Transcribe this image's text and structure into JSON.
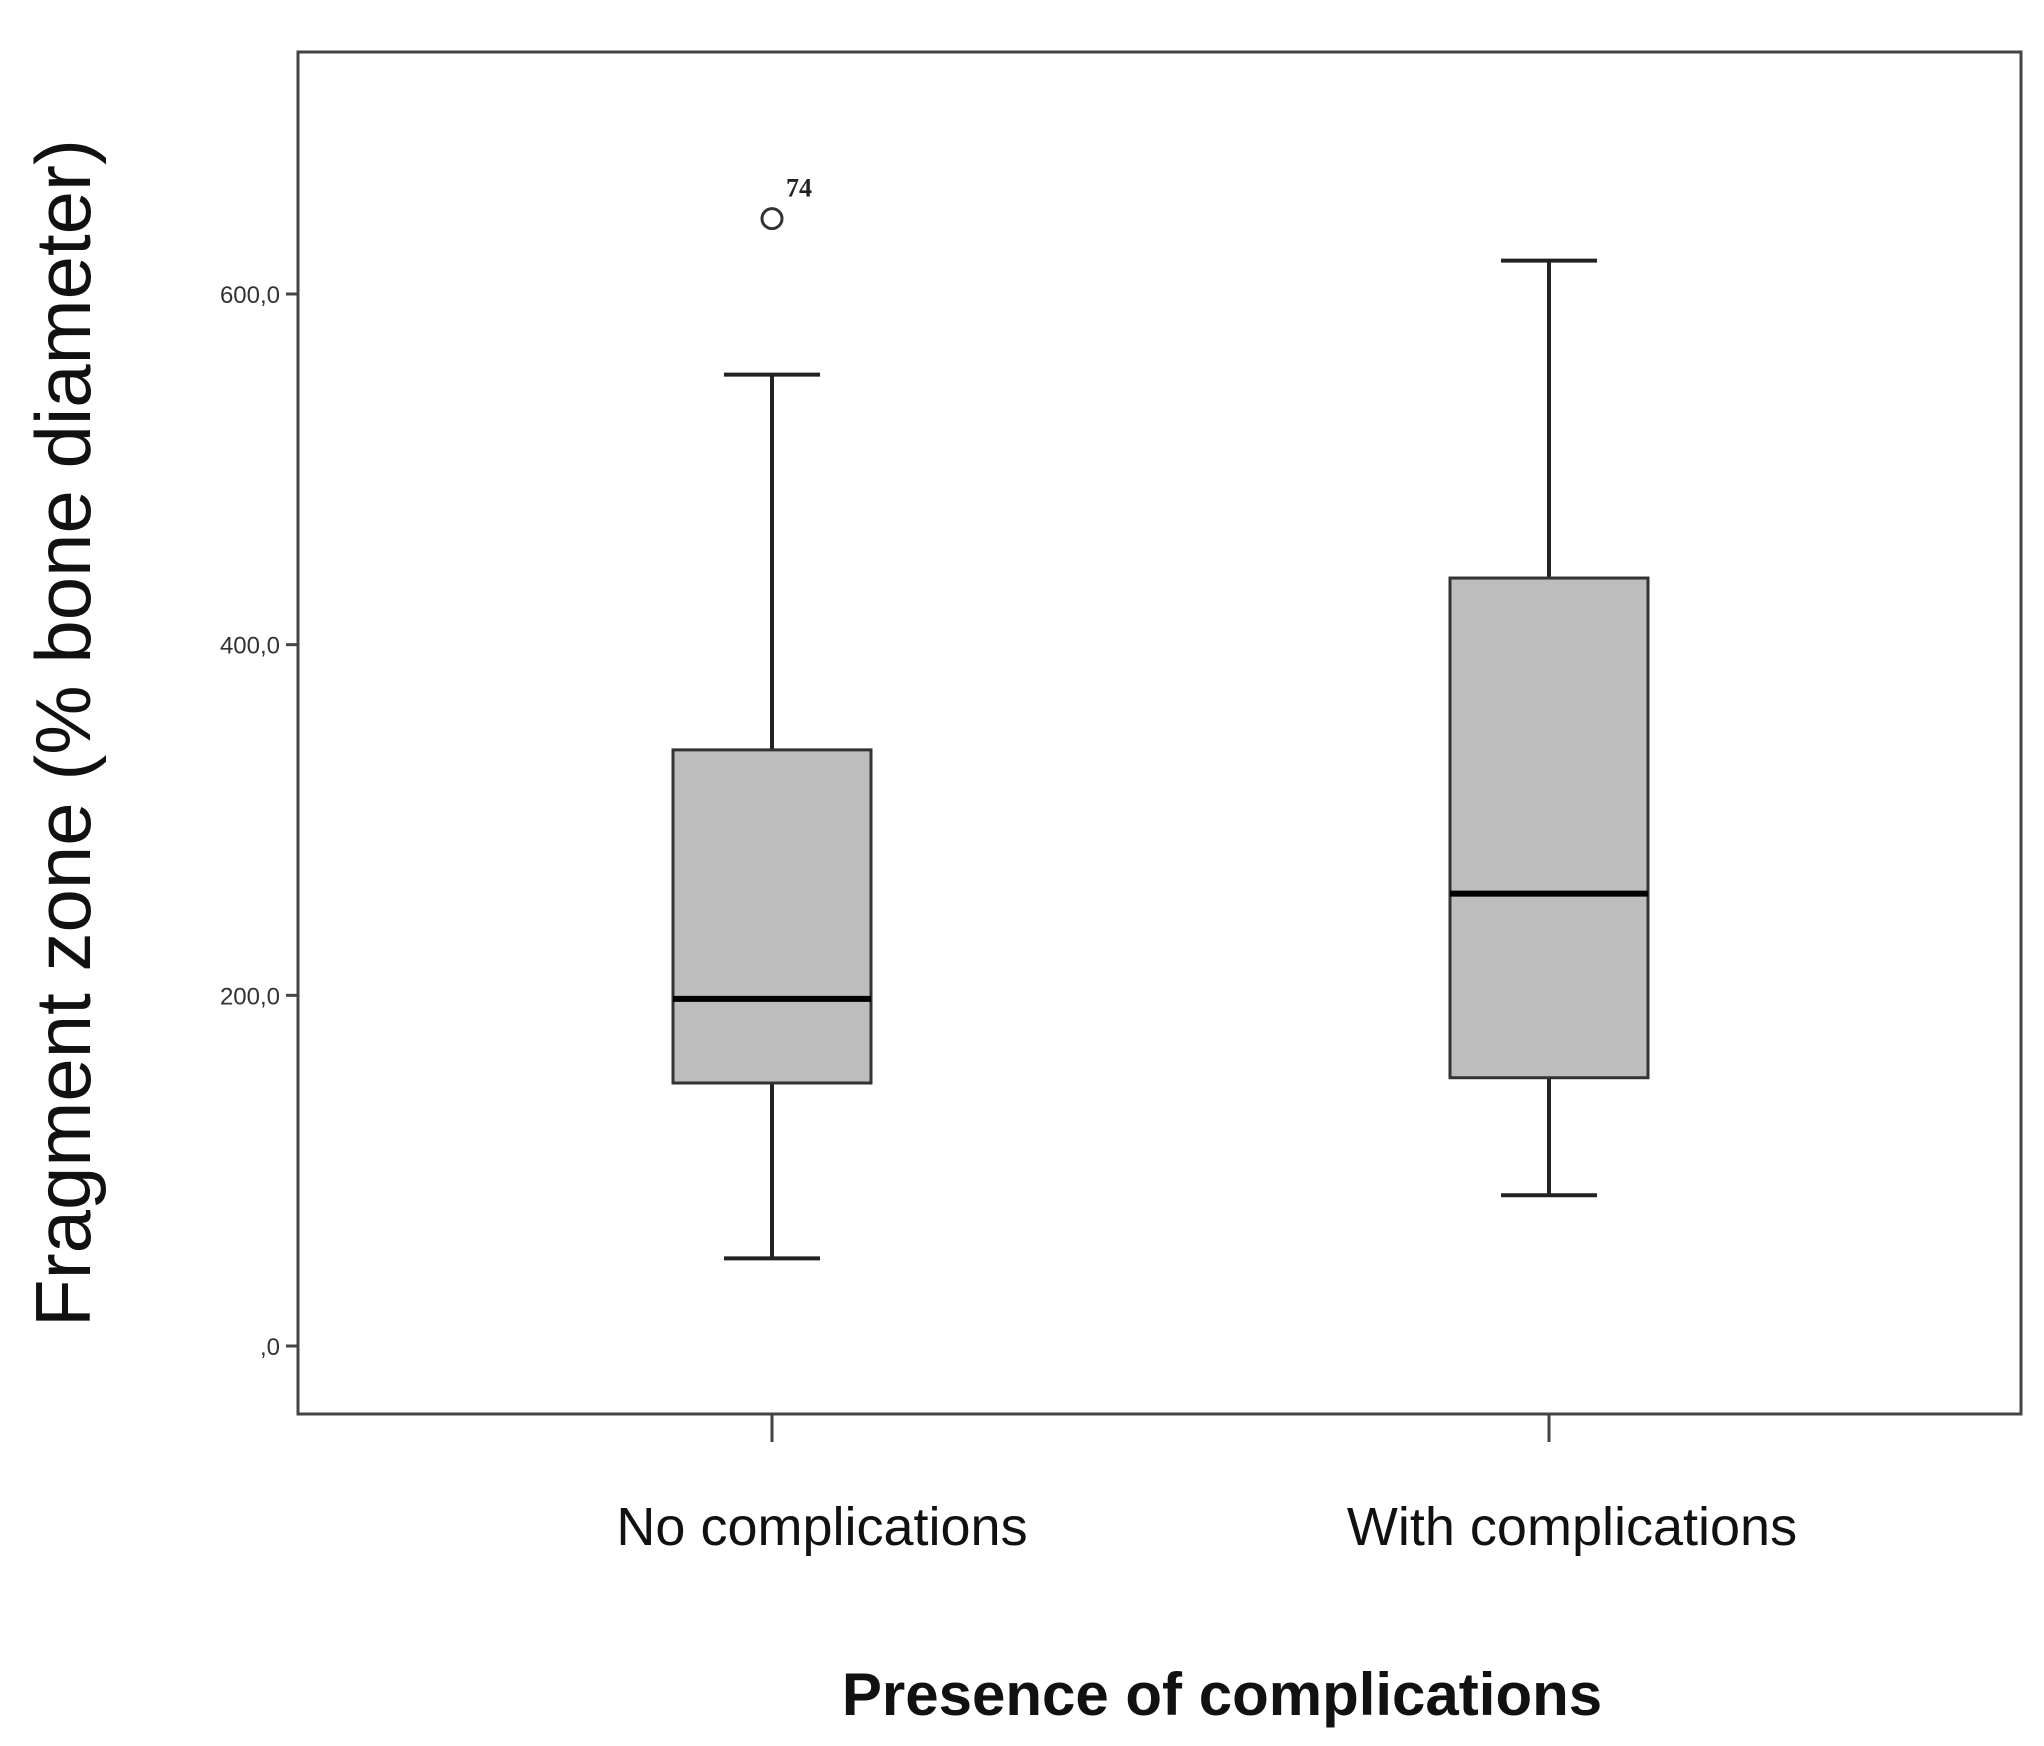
{
  "chart_data": {
    "type": "box",
    "title": "",
    "xlabel": "Presence of complications",
    "ylabel": "Fragment zone (% bone diameter)",
    "ylim": [
      -40,
      735
    ],
    "yticks": [
      {
        "value": 0,
        "label": ",0"
      },
      {
        "value": 200,
        "label": "200,0"
      },
      {
        "value": 400,
        "label": "400,0"
      },
      {
        "value": 600,
        "label": "600,0"
      }
    ],
    "categories": [
      "No complications",
      "With complications"
    ],
    "boxes": [
      {
        "name": "No complications",
        "whisker_low": 50,
        "q1": 150,
        "median": 198,
        "q3": 340,
        "whisker_high": 554,
        "outliers": [
          {
            "value": 643,
            "label": "74"
          }
        ]
      },
      {
        "name": "With complications",
        "whisker_low": 86,
        "q1": 153,
        "median": 258,
        "q3": 438,
        "whisker_high": 619,
        "outliers": []
      }
    ],
    "box_color": "#bdbdbd",
    "line_color": "#222222",
    "grid": false
  }
}
